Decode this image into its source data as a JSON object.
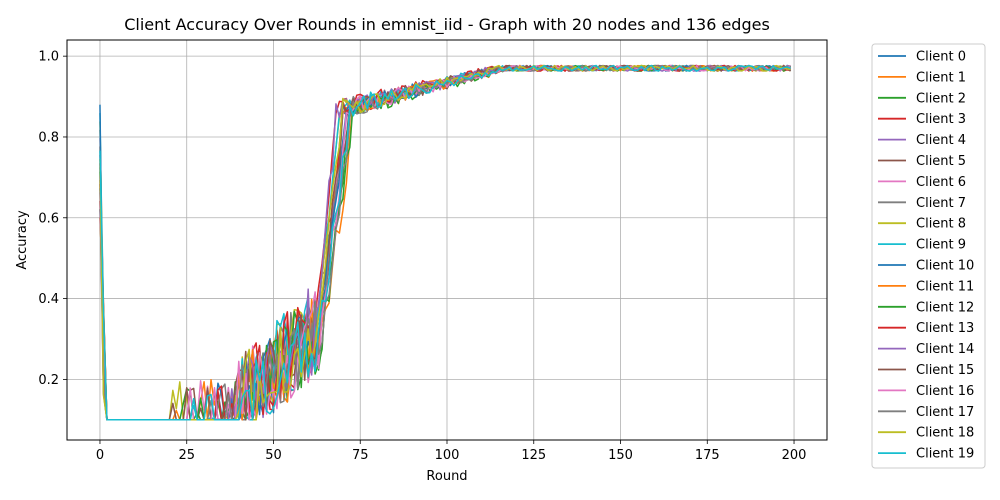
{
  "chart_data": {
    "type": "line",
    "title": "Client Accuracy Over Rounds in emnist_iid - Graph with 20 nodes and 136 edges",
    "xlabel": "Round",
    "ylabel": "Accuracy",
    "xlim": [
      -9.5,
      209.5
    ],
    "ylim": [
      0.05,
      1.04
    ],
    "xticks": [
      0,
      25,
      50,
      75,
      100,
      125,
      150,
      175,
      200
    ],
    "yticks": [
      0.2,
      0.4,
      0.6,
      0.8,
      1.0
    ],
    "ytick_labels": [
      "0.2",
      "0.4",
      "0.6",
      "0.8",
      "1.0"
    ],
    "grid": true,
    "legend_position": "outside-right",
    "rounds": 200,
    "series": [
      {
        "name": "Client 0",
        "color": "#1f77b4"
      },
      {
        "name": "Client 1",
        "color": "#ff7f0e"
      },
      {
        "name": "Client 2",
        "color": "#2ca02c"
      },
      {
        "name": "Client 3",
        "color": "#d62728"
      },
      {
        "name": "Client 4",
        "color": "#9467bd"
      },
      {
        "name": "Client 5",
        "color": "#8c564b"
      },
      {
        "name": "Client 6",
        "color": "#e377c2"
      },
      {
        "name": "Client 7",
        "color": "#7f7f7f"
      },
      {
        "name": "Client 8",
        "color": "#bcbd22"
      },
      {
        "name": "Client 9",
        "color": "#17becf"
      },
      {
        "name": "Client 10",
        "color": "#1f77b4"
      },
      {
        "name": "Client 11",
        "color": "#ff7f0e"
      },
      {
        "name": "Client 12",
        "color": "#2ca02c"
      },
      {
        "name": "Client 13",
        "color": "#d62728"
      },
      {
        "name": "Client 14",
        "color": "#9467bd"
      },
      {
        "name": "Client 15",
        "color": "#8c564b"
      },
      {
        "name": "Client 16",
        "color": "#e377c2"
      },
      {
        "name": "Client 17",
        "color": "#7f7f7f"
      },
      {
        "name": "Client 18",
        "color": "#bcbd22"
      },
      {
        "name": "Client 19",
        "color": "#17becf"
      }
    ],
    "series_profile": {
      "round_0_accuracy_range": [
        0.6,
        0.91
      ],
      "rounds_1_to_20_accuracy": 0.1,
      "rounds_20_to_62_accuracy_range": [
        0.1,
        0.5
      ],
      "rise_rounds": [
        62,
        72
      ],
      "round_75_accuracy_approx": 0.9,
      "round_100_accuracy_approx": 0.96,
      "rounds_125_to_199_accuracy_range": [
        0.94,
        0.99
      ]
    }
  }
}
